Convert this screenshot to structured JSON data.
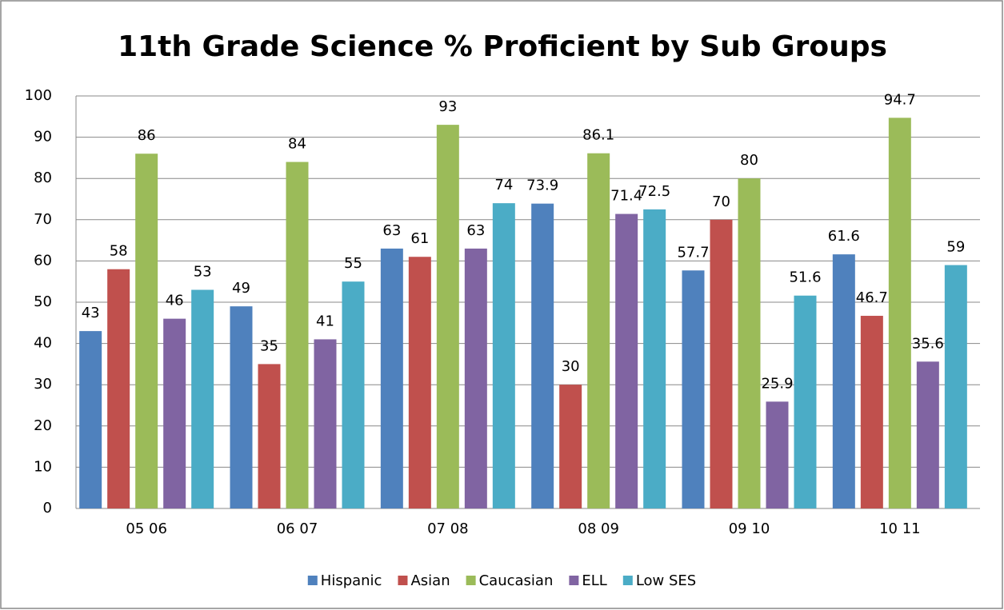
{
  "chart_data": {
    "type": "bar",
    "title": "11th Grade Science % Proficient by Sub Groups",
    "categories": [
      "05 06",
      "06 07",
      "07 08",
      "08 09",
      "09 10",
      "10 11"
    ],
    "series": [
      {
        "name": "Hispanic",
        "color": "#4f81bd",
        "values": [
          43,
          49,
          63,
          73.9,
          57.7,
          61.6
        ]
      },
      {
        "name": "Asian",
        "color": "#c0504d",
        "values": [
          58,
          35,
          61,
          30,
          70,
          46.7
        ]
      },
      {
        "name": "Caucasian",
        "color": "#9bbb59",
        "values": [
          86,
          84,
          93,
          86.1,
          80,
          94.7
        ]
      },
      {
        "name": "ELL",
        "color": "#8064a2",
        "values": [
          46,
          41,
          63,
          71.4,
          25.9,
          35.6
        ]
      },
      {
        "name": "Low SES",
        "color": "#4bacc6",
        "values": [
          53,
          55,
          74,
          72.5,
          51.6,
          59
        ]
      }
    ],
    "ylim": [
      0,
      100
    ],
    "yticks": [
      0,
      10,
      20,
      30,
      40,
      50,
      60,
      70,
      80,
      90,
      100
    ],
    "grid": true,
    "legend": "bottom"
  }
}
